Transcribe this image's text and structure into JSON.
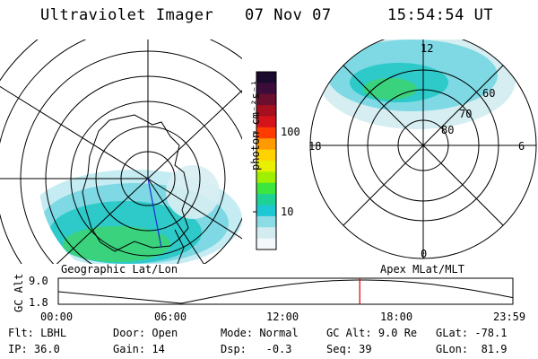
{
  "header": {
    "title": "Ultraviolet Imager",
    "date": "07 Nov 07",
    "time": "15:54:54 UT"
  },
  "left_map": {
    "caption": "Geographic Lat/Lon"
  },
  "right_map": {
    "caption": "Apex MLat/MLT",
    "mlt_labels": {
      "top": "12",
      "left": "18",
      "right": "6",
      "bottom": "0"
    },
    "lat_labels": [
      "60",
      "70",
      "80"
    ]
  },
  "colorbar": {
    "unit": "photon cm⁻²s⁻¹",
    "ticks": [
      "100",
      "10"
    ],
    "colors": [
      "#1a0a2e",
      "#3d0d3a",
      "#6b0f2e",
      "#a50f1e",
      "#d4141a",
      "#ff3c00",
      "#ff9a00",
      "#ffd200",
      "#e8f000",
      "#9ef000",
      "#3ce63c",
      "#1ed296",
      "#1ec8d2",
      "#8cdce6",
      "#d2ecf0",
      "#f4f8fa"
    ]
  },
  "altitude_plot": {
    "ylabel": "GC Alt",
    "ymax_label": "9.0",
    "ymin_label": "1.8",
    "x_ticks": [
      "00:00",
      "06:00",
      "12:00",
      "18:00",
      "23:59"
    ],
    "marker_hour": 15.915,
    "marker_color": "#d40000"
  },
  "status": {
    "row1": [
      {
        "label": "Flt:",
        "value": "LBHL"
      },
      {
        "label": "Door:",
        "value": "Open"
      },
      {
        "label": "Mode:",
        "value": "Normal"
      },
      {
        "label": "GC Alt:",
        "value": "9.0 Re"
      },
      {
        "label": "GLat:",
        "value": "-78.1"
      }
    ],
    "row2": [
      {
        "label": "IP:",
        "value": "36.0"
      },
      {
        "label": "Gain:",
        "value": "14"
      },
      {
        "label": "Dsp:",
        "value": "-0.3"
      },
      {
        "label": "Seq:",
        "value": "39"
      },
      {
        "label": "GLon:",
        "value": "81.9"
      }
    ]
  }
}
